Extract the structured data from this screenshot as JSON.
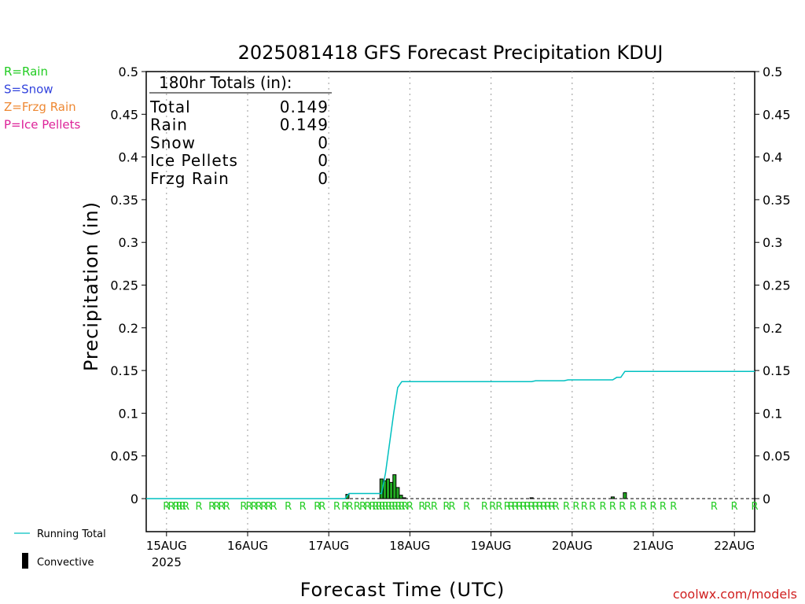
{
  "chart_data": {
    "type": "bar",
    "title": "2025081418 GFS Forecast Precipitation KDUJ",
    "xlabel": "Forecast Time (UTC)",
    "ylabel": "Precipitation (in)",
    "ylim": [
      0,
      0.5
    ],
    "xlim_days": [
      14.75,
      22.25
    ],
    "y_ticks": [
      "0",
      "0.05",
      "0.1",
      "0.15",
      "0.2",
      "0.25",
      "0.3",
      "0.35",
      "0.4",
      "0.45",
      "0.5"
    ],
    "x_ticks": [
      {
        "day": 15,
        "label": "15AUG",
        "sublabel": "2025"
      },
      {
        "day": 16,
        "label": "16AUG"
      },
      {
        "day": 17,
        "label": "17AUG"
      },
      {
        "day": 18,
        "label": "18AUG"
      },
      {
        "day": 19,
        "label": "19AUG"
      },
      {
        "day": 20,
        "label": "20AUG"
      },
      {
        "day": 21,
        "label": "21AUG"
      },
      {
        "day": 22,
        "label": "22AUG"
      }
    ],
    "grid": "vertical dotted at each day",
    "legend_ptype": [
      {
        "label": "R=Rain",
        "color": "#22cc22"
      },
      {
        "label": "S=Snow",
        "color": "#3344dd"
      },
      {
        "label": "Z=Frzg Rain",
        "color": "#ee8833"
      },
      {
        "label": "P=Ice Pellets",
        "color": "#dd2299"
      }
    ],
    "legend_lines": [
      {
        "label": "Running Total",
        "color": "#00c0c0"
      },
      {
        "label": "Convective",
        "color": "#000000"
      }
    ],
    "totals_box": {
      "heading": "180hr Totals (in):",
      "rows": [
        {
          "label": "Total",
          "value": "0.149"
        },
        {
          "label": "Rain",
          "value": "0.149"
        },
        {
          "label": "Snow",
          "value": "0"
        },
        {
          "label": "Ice Pellets",
          "value": "0"
        },
        {
          "label": "Frzg Rain",
          "value": "0"
        }
      ]
    },
    "series": [
      {
        "name": "Running Total",
        "type": "line",
        "points": [
          [
            14.75,
            0
          ],
          [
            17.2,
            0
          ],
          [
            17.25,
            0.006
          ],
          [
            17.65,
            0.006
          ],
          [
            17.7,
            0.03
          ],
          [
            17.75,
            0.065
          ],
          [
            17.8,
            0.1
          ],
          [
            17.85,
            0.13
          ],
          [
            17.9,
            0.137
          ],
          [
            19.5,
            0.137
          ],
          [
            19.55,
            0.138
          ],
          [
            19.9,
            0.138
          ],
          [
            19.95,
            0.139
          ],
          [
            20.5,
            0.139
          ],
          [
            20.55,
            0.142
          ],
          [
            20.6,
            0.142
          ],
          [
            20.65,
            0.149
          ],
          [
            22.25,
            0.149
          ]
        ]
      },
      {
        "name": "Precipitation",
        "type": "bar",
        "bars": [
          [
            17.23,
            0.005
          ],
          [
            17.65,
            0.023
          ],
          [
            17.69,
            0.021
          ],
          [
            17.73,
            0.023
          ],
          [
            17.77,
            0.019
          ],
          [
            17.81,
            0.028
          ],
          [
            17.85,
            0.013
          ],
          [
            17.89,
            0.004
          ],
          [
            17.93,
            0.001
          ],
          [
            19.5,
            0.001
          ],
          [
            20.5,
            0.002
          ],
          [
            20.65,
            0.007
          ]
        ]
      }
    ],
    "ptype_row": {
      "symbol": "R",
      "days": [
        15.0,
        15.06,
        15.12,
        15.16,
        15.2,
        15.24,
        15.4,
        15.56,
        15.62,
        15.68,
        15.74,
        15.95,
        16.02,
        16.08,
        16.14,
        16.2,
        16.26,
        16.32,
        16.5,
        16.68,
        16.86,
        16.92,
        17.1,
        17.2,
        17.26,
        17.35,
        17.42,
        17.48,
        17.54,
        17.58,
        17.62,
        17.66,
        17.7,
        17.74,
        17.78,
        17.82,
        17.86,
        17.9,
        17.94,
        18.0,
        18.15,
        18.22,
        18.3,
        18.45,
        18.52,
        18.7,
        18.92,
        19.02,
        19.1,
        19.2,
        19.25,
        19.3,
        19.35,
        19.4,
        19.45,
        19.5,
        19.55,
        19.6,
        19.65,
        19.7,
        19.75,
        19.8,
        19.93,
        20.05,
        20.15,
        20.25,
        20.38,
        20.5,
        20.62,
        20.75,
        20.88,
        21.0,
        21.12,
        21.25,
        21.75,
        22.0,
        22.25
      ]
    }
  },
  "credit": "coolwx.com/models"
}
